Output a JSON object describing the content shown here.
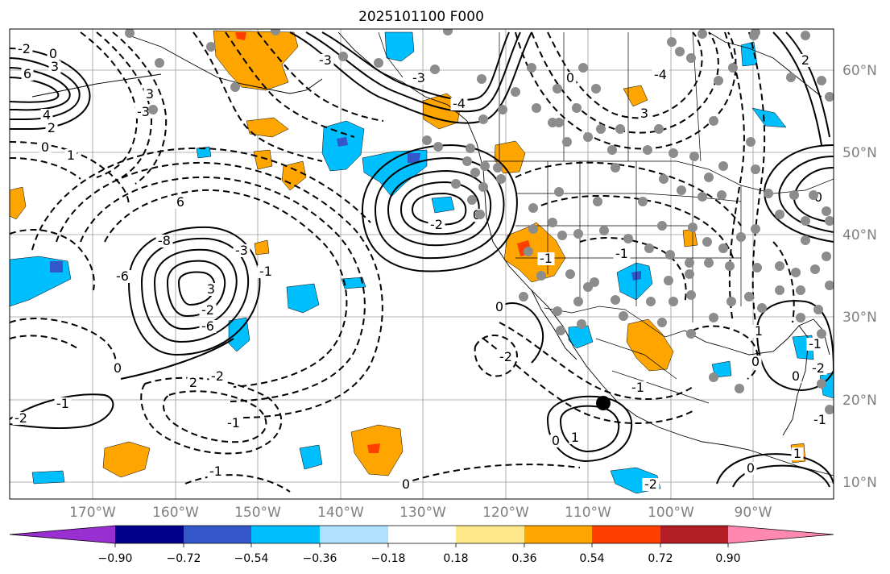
{
  "title": "2025101100 F000",
  "map": {
    "lat_labels": [
      "60°N",
      "50°N",
      "40°N",
      "30°N",
      "20°N",
      "10°N"
    ],
    "lon_labels": [
      "170°W",
      "160°W",
      "150°W",
      "140°W",
      "130°W",
      "120°W",
      "110°W",
      "100°W",
      "90°W"
    ],
    "contour_labels": [
      "6",
      "3",
      "4",
      "2",
      "0",
      "1",
      "-2",
      "3",
      "-3",
      "0",
      "2",
      "-1",
      "6",
      "-3",
      "-8",
      "-6",
      "3",
      "-2",
      "-6",
      "-2",
      "0",
      "-1",
      "-2",
      "-1",
      "-3",
      "-4",
      "-2",
      "-3",
      "0",
      "0",
      "-4",
      "3",
      "-1",
      "-1",
      "0",
      "-2",
      "-1",
      "0",
      "1",
      "-1",
      "0",
      "-2",
      "0",
      "1",
      "-1",
      "-2",
      "0",
      "1",
      "-1",
      "0",
      "2",
      "0"
    ]
  },
  "colorbar": {
    "colors": [
      "#9a2fd1",
      "#00008b",
      "#3357c9",
      "#00bfff",
      "#afe1ff",
      "#ffffff",
      "#fde98a",
      "#ffa500",
      "#ff3f00",
      "#b21e23",
      "#ff88b0"
    ],
    "tick_labels": [
      "−0.90",
      "−0.72",
      "−0.54",
      "−0.36",
      "−0.18",
      "0.18",
      "0.36",
      "0.54",
      "0.72",
      "0.90"
    ]
  }
}
